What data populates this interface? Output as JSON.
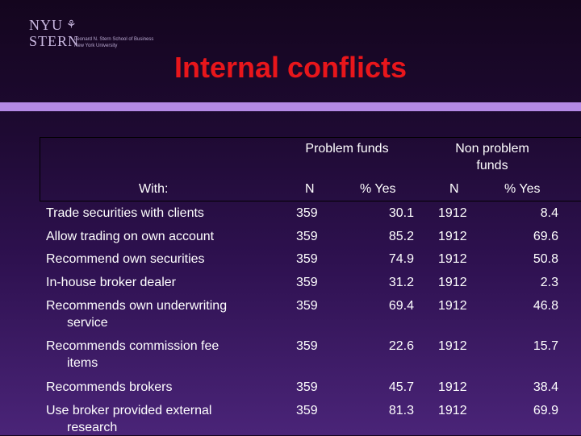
{
  "logo": {
    "line1": "NYU",
    "line2": "STERN",
    "sub1": "Leonard N. Stern School of Business",
    "sub2": "New York University"
  },
  "slide": {
    "title": "Internal conflicts"
  },
  "table": {
    "group_problem": "Problem funds",
    "group_nonproblem_line1": "Non problem",
    "group_nonproblem_line2": "funds",
    "col_with": "With:",
    "col_n": "N",
    "col_pct": "% Yes",
    "rows": [
      {
        "label1": "Trade securities with clients",
        "label2": "",
        "pn": "359",
        "pp": "30.1",
        "nn": "1912",
        "np": "8.4"
      },
      {
        "label1": "Allow trading on own account",
        "label2": "",
        "pn": "359",
        "pp": "85.2",
        "nn": "1912",
        "np": "69.6"
      },
      {
        "label1": "Recommend own securities",
        "label2": "",
        "pn": "359",
        "pp": "74.9",
        "nn": "1912",
        "np": "50.8"
      },
      {
        "label1": "In-house broker dealer",
        "label2": "",
        "pn": "359",
        "pp": "31.2",
        "nn": "1912",
        "np": "2.3"
      },
      {
        "label1": "Recommends own underwriting",
        "label2": "service",
        "pn": "359",
        "pp": "69.4",
        "nn": "1912",
        "np": "46.8"
      },
      {
        "label1": "Recommends commission fee",
        "label2": "items",
        "pn": "359",
        "pp": "22.6",
        "nn": "1912",
        "np": "15.7"
      },
      {
        "label1": "Recommends brokers",
        "label2": "",
        "pn": "359",
        "pp": "45.7",
        "nn": "1912",
        "np": "38.4"
      },
      {
        "label1": "Use broker provided external",
        "label2": "research",
        "pn": "359",
        "pp": "81.3",
        "nn": "1912",
        "np": "69.9"
      }
    ]
  }
}
